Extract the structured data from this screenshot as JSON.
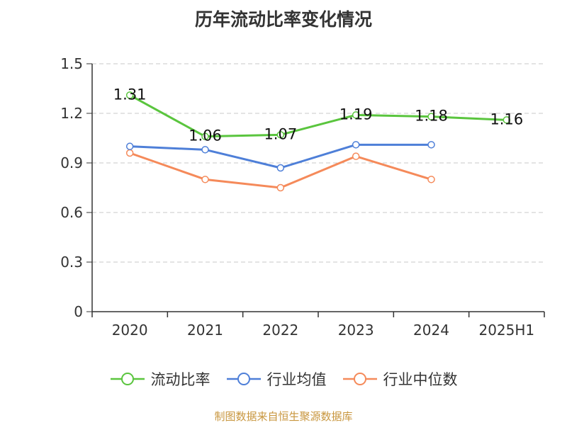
{
  "title": "历年流动比率变化情况",
  "source": "制图数据来自恒生聚源数据库",
  "chart_data": {
    "type": "line",
    "categories": [
      "2020",
      "2021",
      "2022",
      "2023",
      "2024",
      "2025H1"
    ],
    "ylim": [
      0,
      1.5
    ],
    "yticks": [
      0,
      0.3,
      0.6,
      0.9,
      1.2,
      1.5
    ],
    "ytick_labels": [
      "0",
      "0.3",
      "0.6",
      "0.9",
      "1.2",
      "1.5"
    ],
    "grid": true,
    "legend_position": "bottom",
    "series": [
      {
        "name": "流动比率",
        "color": "#5ac53e",
        "values": [
          1.31,
          1.06,
          1.07,
          1.19,
          1.18,
          1.16
        ],
        "labels": [
          "1.31",
          "1.06",
          "1.07",
          "1.19",
          "1.18",
          "1.16"
        ]
      },
      {
        "name": "行业均值",
        "color": "#4e7fd8",
        "values": [
          1.0,
          0.98,
          0.87,
          1.01,
          1.01,
          null
        ]
      },
      {
        "name": "行业中位数",
        "color": "#f58a5a",
        "values": [
          0.96,
          0.8,
          0.75,
          0.94,
          0.8,
          null
        ]
      }
    ]
  }
}
